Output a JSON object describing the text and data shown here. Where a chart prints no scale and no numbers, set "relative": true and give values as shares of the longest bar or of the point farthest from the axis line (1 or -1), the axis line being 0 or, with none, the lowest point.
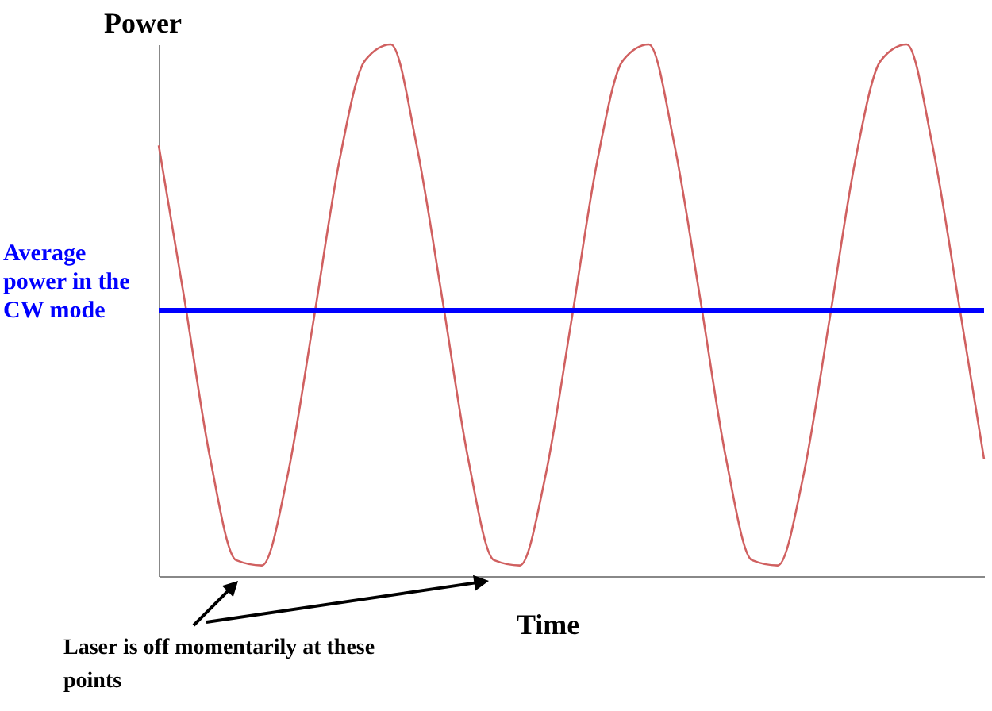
{
  "chart_data": {
    "type": "line",
    "relative": true,
    "xlabel": "Time",
    "ylabel": "Power",
    "categories": [
      null,
      null,
      null,
      null,
      null,
      null,
      null,
      null,
      null,
      null,
      null,
      null,
      null,
      null,
      null,
      null,
      null,
      null,
      null,
      null,
      null,
      null,
      null,
      null,
      null,
      null,
      null,
      null,
      null,
      null,
      null,
      null,
      null
    ],
    "series": [
      {
        "color": "#d06060",
        "values": [
          0.81,
          0.52,
          0.22,
          0.03,
          0.02,
          0.19,
          0.48,
          0.78,
          0.97,
          1,
          0.81,
          0.52,
          0.22,
          0.03,
          0.02,
          0.19,
          0.48,
          0.78,
          0.97,
          1,
          0.81,
          0.52,
          0.22,
          0.03,
          0.02,
          0.19,
          0.48,
          0.78,
          0.97,
          1,
          0.81,
          0.52,
          0.22
        ]
      }
    ],
    "ref_lines": [
      {
        "axis": "y",
        "value": 0.5,
        "label": "Average power in the CW mode",
        "color": "#0000ff"
      }
    ],
    "annotations": [
      "Laser is off momentarily at these points"
    ]
  }
}
